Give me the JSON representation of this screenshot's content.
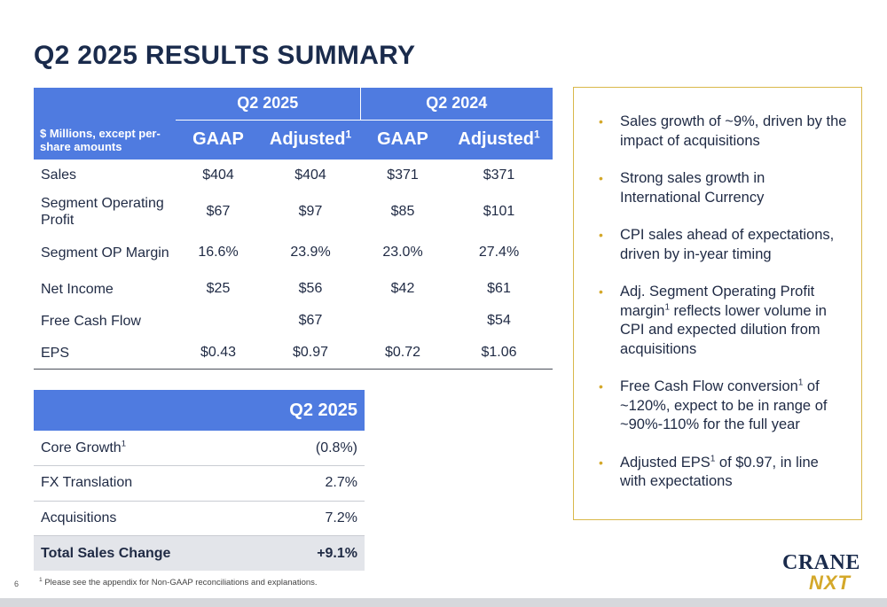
{
  "title": "Q2 2025 RESULTS SUMMARY",
  "results_table": {
    "row_header_label": "$ Millions, except per-share amounts",
    "periods": [
      "Q2 2025",
      "Q2 2024"
    ],
    "columns": [
      {
        "label": "GAAP",
        "sup": ""
      },
      {
        "label": "Adjusted",
        "sup": "1"
      },
      {
        "label": "GAAP",
        "sup": ""
      },
      {
        "label": "Adjusted",
        "sup": "1"
      }
    ],
    "rows": [
      {
        "label": "Sales",
        "values": [
          "$404",
          "$404",
          "$371",
          "$371"
        ]
      },
      {
        "label": "Segment Operating Profit",
        "values": [
          "$67",
          "$97",
          "$85",
          "$101"
        ]
      },
      {
        "label": "Segment OP Margin",
        "values": [
          "16.6%",
          "23.9%",
          "23.0%",
          "27.4%"
        ]
      },
      {
        "label": "Net Income",
        "values": [
          "$25",
          "$56",
          "$42",
          "$61"
        ]
      },
      {
        "label": "Free Cash Flow",
        "values": [
          "",
          "$67",
          "",
          "$54"
        ]
      },
      {
        "label": "EPS",
        "values": [
          "$0.43",
          "$0.97",
          "$0.72",
          "$1.06"
        ]
      }
    ]
  },
  "sales_change_table": {
    "header": "Q2 2025",
    "rows": [
      {
        "label": "Core Growth",
        "sup": "1",
        "value": "(0.8%)"
      },
      {
        "label": "FX Translation",
        "sup": "",
        "value": "2.7%"
      },
      {
        "label": "Acquisitions",
        "sup": "",
        "value": "7.2%"
      }
    ],
    "total": {
      "label": "Total Sales Change",
      "value": "+9.1%"
    }
  },
  "highlights": [
    {
      "pre": "Sales growth of ~9%, driven by the impact of acquisitions",
      "sup": "",
      "post": ""
    },
    {
      "pre": "Strong sales growth in International Currency",
      "sup": "",
      "post": ""
    },
    {
      "pre": "CPI sales ahead of expectations, driven by in-year timing",
      "sup": "",
      "post": ""
    },
    {
      "pre": "Adj. Segment Operating Profit margin",
      "sup": "1",
      "post": " reflects lower volume in CPI and expected dilution from acquisitions"
    },
    {
      "pre": "Free Cash Flow conversion",
      "sup": "1",
      "post": " of ~120%, expect to be in range of ~90%-110% for the full year"
    },
    {
      "pre": "Adjusted EPS",
      "sup": "1",
      "post": " of $0.97, in line with expectations"
    }
  ],
  "bullet_glyph": "•",
  "footnote": {
    "sup": "1",
    "text": "Please see the appendix for Non-GAAP reconciliations and explanations."
  },
  "page_number": "6",
  "logo": {
    "line1": "CRANE",
    "line2": "NXT"
  },
  "colors": {
    "header_blue": "#4f7be0",
    "navy": "#1a2b4c",
    "gold": "#d4a82a",
    "total_row_gray": "#e3e5ea"
  }
}
